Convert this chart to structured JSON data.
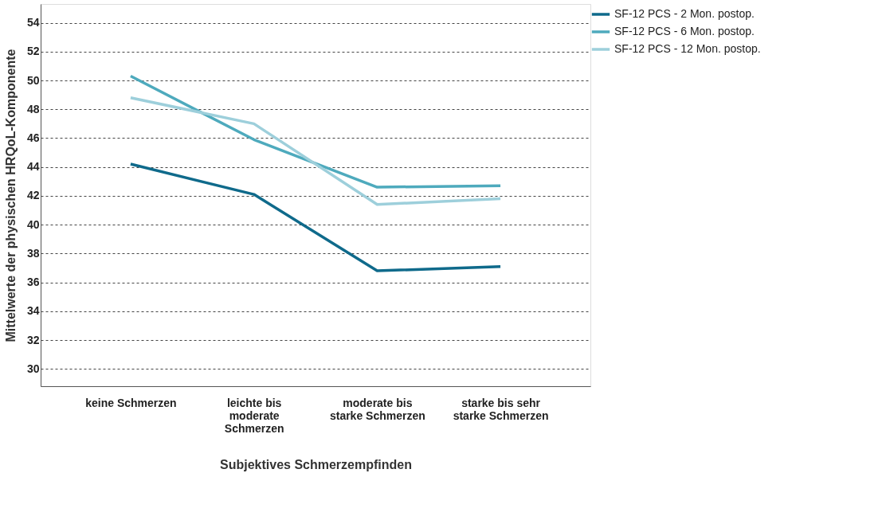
{
  "chart_data": {
    "type": "line",
    "xlabel": "Subjektives Schmerzempfinden",
    "ylabel": "Mittelwerte der physischen HRQoL-Komponente",
    "categories": [
      "keine Schmerzen",
      "leichte bis moderate Schmerzen",
      "moderate bis starke Schmerzen",
      "starke bis sehr starke Schmerzen"
    ],
    "series": [
      {
        "name": "SF-12 PCS - 2 Mon. postop.",
        "color": "#0f6a8b",
        "values": [
          44.2,
          42.1,
          36.8,
          37.1
        ]
      },
      {
        "name": "SF-12 PCS - 6 Mon. postop.",
        "color": "#4eaabd",
        "values": [
          50.3,
          45.9,
          42.6,
          42.7
        ]
      },
      {
        "name": "SF-12 PCS - 12 Mon. postop.",
        "color": "#9dcfdb",
        "values": [
          48.8,
          47.0,
          41.4,
          41.8
        ]
      }
    ],
    "ylim": [
      28.8,
      55.3
    ],
    "yticks": [
      30,
      32,
      34,
      36,
      38,
      40,
      42,
      44,
      46,
      48,
      50,
      52,
      54
    ],
    "grid": "y",
    "legend": "top right",
    "marker": "none",
    "line_style": "solid"
  }
}
